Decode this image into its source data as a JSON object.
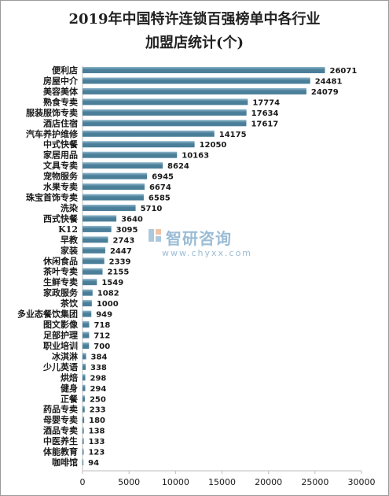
{
  "chart_data": {
    "type": "bar",
    "orientation": "horizontal",
    "title": [
      "2019年中国特许连锁百强榜单中各行业",
      "加盟店统计(个)"
    ],
    "categories": [
      "便利店",
      "房屋中介",
      "美容美体",
      "熟食专卖",
      "服装服饰专卖",
      "酒店住宿",
      "汽车养护维修",
      "中式快餐",
      "家居用品",
      "文具专卖",
      "宠物服务",
      "水果专卖",
      "珠宝首饰专卖",
      "洗染",
      "西式快餐",
      "K12",
      "早教",
      "家装",
      "休闲食品",
      "茶叶专卖",
      "生鲜专卖",
      "家政服务",
      "茶饮",
      "多业态餐饮集团",
      "图文影像",
      "足部护理",
      "职业培训",
      "冰淇淋",
      "少儿英语",
      "烘焙",
      "健身",
      "正餐",
      "药品专卖",
      "母婴专卖",
      "酒品专卖",
      "中医养生",
      "体能教育",
      "咖啡馆"
    ],
    "values": [
      26071,
      24481,
      24079,
      17774,
      17634,
      17617,
      14175,
      12050,
      10163,
      8624,
      6945,
      6674,
      6585,
      5710,
      3640,
      3095,
      2743,
      2447,
      2339,
      2155,
      1549,
      1082,
      1000,
      949,
      718,
      712,
      700,
      384,
      338,
      298,
      294,
      250,
      233,
      180,
      138,
      133,
      123,
      94
    ],
    "xlim": [
      0,
      30000
    ],
    "xticks": [
      0,
      5000,
      10000,
      15000,
      20000,
      25000,
      30000
    ],
    "grid": false,
    "colors": {
      "bar": "#4a7e99",
      "bar_light": "#8fb8cc",
      "text": "#1a1a1a"
    }
  },
  "watermark": {
    "brand": "智研咨询",
    "url": "www.chyxx.com"
  }
}
